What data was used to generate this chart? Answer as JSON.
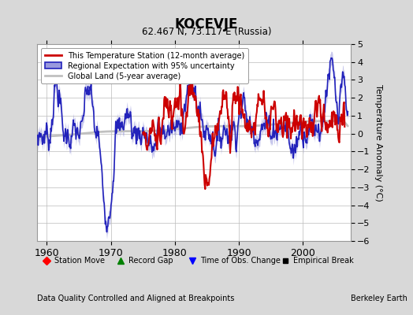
{
  "title": "KOCEVJE",
  "subtitle": "62.467 N, 73.117 E (Russia)",
  "ylabel": "Temperature Anomaly (°C)",
  "xlabel_note": "Data Quality Controlled and Aligned at Breakpoints",
  "credit": "Berkeley Earth",
  "xlim": [
    1958.5,
    2007.5
  ],
  "ylim": [
    -6,
    5
  ],
  "yticks": [
    -6,
    -5,
    -4,
    -3,
    -2,
    -1,
    0,
    1,
    2,
    3,
    4,
    5
  ],
  "xticks": [
    1960,
    1970,
    1980,
    1990,
    2000
  ],
  "bg_color": "#d8d8d8",
  "plot_bg_color": "#ffffff",
  "grid_color": "#bbbbbb",
  "regional_color": "#2222bb",
  "regional_fill_color": "#9999dd",
  "station_color": "#cc0000",
  "global_color": "#c0c0c0",
  "global_lw": 2.0,
  "regional_lw": 1.2,
  "station_lw": 1.5,
  "legend_station": "This Temperature Station (12-month average)",
  "legend_regional": "Regional Expectation with 95% uncertainty",
  "legend_global": "Global Land (5-year average)"
}
